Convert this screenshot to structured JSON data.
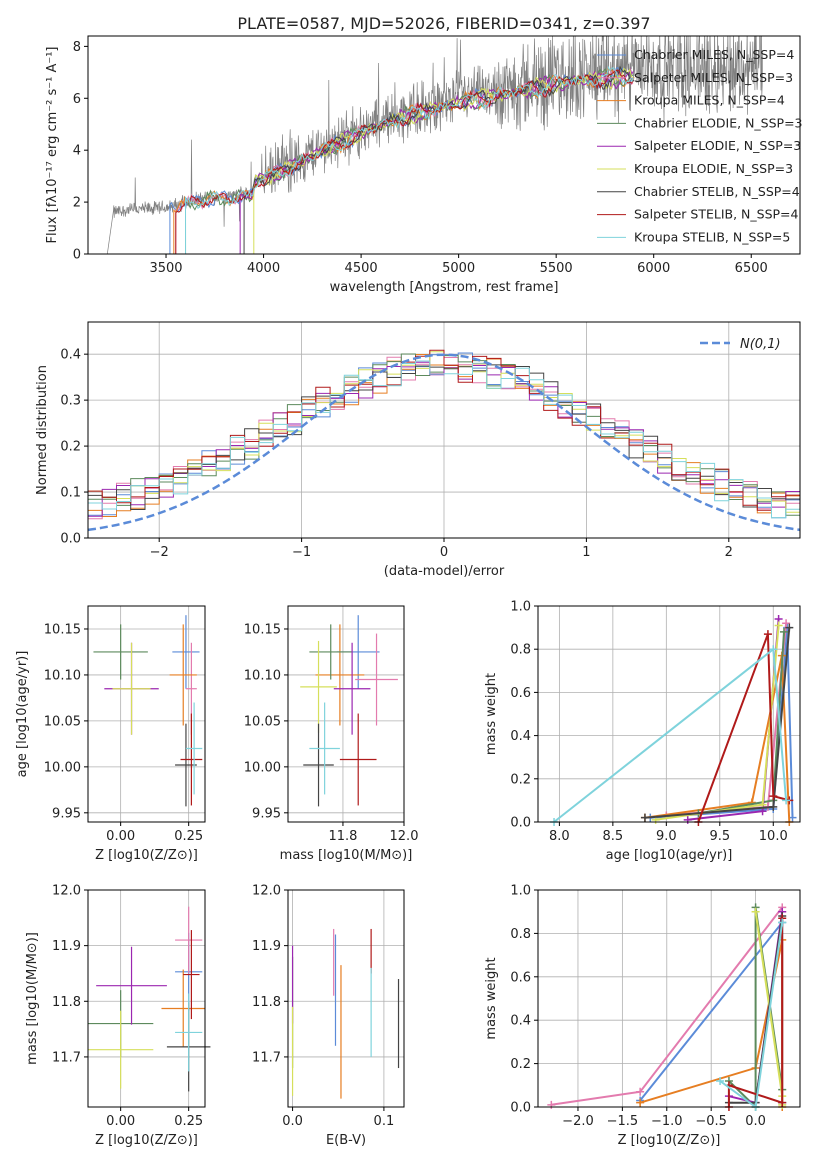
{
  "figure_title": "PLATE=0587, MJD=52026, FIBERID=0341, z=0.397",
  "colors": {
    "c1": "#5b8bd8",
    "c2": "#e37bae",
    "c3": "#e67e22",
    "c4": "#5c8a5c",
    "c5": "#9b27b0",
    "c6": "#d6df5b",
    "c7": "#444444",
    "c8": "#b01a1a",
    "c9": "#7fd3dc",
    "grid": "#b0b0b0",
    "spectrum": "#808080",
    "normal": "#5b8bd8"
  },
  "chart_data": [
    {
      "id": "spectrum",
      "type": "line",
      "title": "PLATE=0587, MJD=52026, FIBERID=0341, z=0.397",
      "xlabel": "wavelength [Angstrom, rest frame]",
      "ylabel": "Flux [fλ10⁻¹⁷ erg cm⁻² s⁻¹ A⁻¹]",
      "xlim": [
        3100,
        6750
      ],
      "ylim": [
        0,
        8.4
      ],
      "xticks": [
        3500,
        4000,
        4500,
        5000,
        5500,
        6000,
        6500
      ],
      "yticks": [
        0,
        2,
        4,
        6,
        8
      ],
      "grid": false,
      "legend": "top-right",
      "series": [
        {
          "name": "Chabrier MILES, N_SSP=4",
          "color": "c1"
        },
        {
          "name": "Salpeter MILES, N_SSP=3",
          "color": "c2"
        },
        {
          "name": "Kroupa MILES, N_SSP=4",
          "color": "c3"
        },
        {
          "name": "Chabrier ELODIE, N_SSP=3",
          "color": "c4"
        },
        {
          "name": "Salpeter ELODIE, N_SSP=3",
          "color": "c5"
        },
        {
          "name": "Kroupa ELODIE, N_SSP=3",
          "color": "c6"
        },
        {
          "name": "Chabrier STELIB, N_SSP=4",
          "color": "c7"
        },
        {
          "name": "Salpeter STELIB, N_SSP=4",
          "color": "c8"
        },
        {
          "name": "Kroupa STELIB, N_SSP=5",
          "color": "c9"
        }
      ],
      "continuum": {
        "x": [
          3200,
          3230,
          3300,
          3450,
          3520,
          3600,
          3700,
          3800,
          3900,
          3940,
          3960,
          4000,
          4100,
          4200,
          4300,
          4500,
          4700,
          4850,
          5000,
          5200,
          5400,
          5600,
          5800,
          6000,
          6200,
          6400,
          6560
        ],
        "y": [
          0,
          1.6,
          1.7,
          1.75,
          1.8,
          2.0,
          2.15,
          2.2,
          2.3,
          2.35,
          2.9,
          3.0,
          3.3,
          3.7,
          4.1,
          4.8,
          5.4,
          5.7,
          6.0,
          6.3,
          6.6,
          6.9,
          7.0,
          7.1,
          7.2,
          7.2,
          7.3
        ]
      },
      "model_starts": [
        3520,
        3550,
        3540,
        3600,
        3880,
        3950,
        3900,
        3550,
        3600
      ]
    },
    {
      "id": "residuals",
      "type": "area",
      "xlabel": "(data-model)/error",
      "ylabel": "Normed distribution",
      "xlim": [
        -2.5,
        2.5
      ],
      "ylim": [
        0,
        0.47
      ],
      "xticks": [
        -2,
        -1,
        0,
        1,
        2
      ],
      "yticks": [
        0,
        0.1,
        0.2,
        0.3,
        0.4
      ],
      "grid": true,
      "legend": "top-right",
      "normal_label": "N(0,1)",
      "bin_width": 0.1
    },
    {
      "id": "age-vs-Z",
      "type": "scatter",
      "xlabel": "Z [log10(Z/Z⊙)]",
      "ylabel": "age  [log10(age/yr)]",
      "xlim": [
        -0.12,
        0.31
      ],
      "ylim": [
        9.94,
        10.175
      ],
      "xticks": [
        0.0,
        0.25
      ],
      "yticks": [
        9.95,
        10.0,
        10.05,
        10.1,
        10.15
      ],
      "grid": true,
      "points": [
        {
          "color": "c1",
          "x": 0.24,
          "xerr": 0.05,
          "y": 10.125,
          "yerr": 0.04
        },
        {
          "color": "c2",
          "x": 0.26,
          "xerr": 0.02,
          "y": 10.085,
          "yerr": 0.05
        },
        {
          "color": "c3",
          "x": 0.23,
          "xerr": 0.05,
          "y": 10.1,
          "yerr": 0.055
        },
        {
          "color": "c4",
          "x": 0.0,
          "xerr": 0.1,
          "y": 10.125,
          "yerr": 0.03
        },
        {
          "color": "c5",
          "x": 0.04,
          "xerr": 0.1,
          "y": 10.085,
          "yerr": 0.05
        },
        {
          "color": "c6",
          "x": 0.04,
          "xerr": 0.07,
          "y": 10.085,
          "yerr": 0.05
        },
        {
          "color": "c7",
          "x": 0.24,
          "xerr": 0.04,
          "y": 10.002,
          "yerr": 0.045
        },
        {
          "color": "c8",
          "x": 0.26,
          "xerr": 0.04,
          "y": 10.008,
          "yerr": 0.05
        },
        {
          "color": "c9",
          "x": 0.27,
          "xerr": 0.03,
          "y": 10.02,
          "yerr": 0.05
        }
      ]
    },
    {
      "id": "age-vs-mass",
      "type": "scatter",
      "xlabel": "mass [log10(M/M⊙)]",
      "ylabel": "",
      "xlim": [
        11.62,
        12.0
      ],
      "ylim": [
        9.94,
        10.175
      ],
      "xticks": [
        11.8,
        12.0
      ],
      "yticks": [
        9.95,
        10.0,
        10.05,
        10.1,
        10.15
      ],
      "grid": true,
      "points": [
        {
          "color": "c1",
          "x": 11.85,
          "xerr": 0.07,
          "y": 10.125,
          "yerr": 0.04
        },
        {
          "color": "c2",
          "x": 11.91,
          "xerr": 0.07,
          "y": 10.095,
          "yerr": 0.05
        },
        {
          "color": "c3",
          "x": 11.79,
          "xerr": 0.08,
          "y": 10.1,
          "yerr": 0.055
        },
        {
          "color": "c4",
          "x": 11.76,
          "xerr": 0.07,
          "y": 10.125,
          "yerr": 0.03
        },
        {
          "color": "c5",
          "x": 11.83,
          "xerr": 0.06,
          "y": 10.085,
          "yerr": 0.05
        },
        {
          "color": "c6",
          "x": 11.72,
          "xerr": 0.06,
          "y": 10.087,
          "yerr": 0.05
        },
        {
          "color": "c7",
          "x": 11.72,
          "xerr": 0.05,
          "y": 10.002,
          "yerr": 0.045
        },
        {
          "color": "c8",
          "x": 11.85,
          "xerr": 0.06,
          "y": 10.008,
          "yerr": 0.05
        },
        {
          "color": "c9",
          "x": 11.74,
          "xerr": 0.05,
          "y": 10.02,
          "yerr": 0.05
        }
      ]
    },
    {
      "id": "mass-weight-vs-age",
      "type": "line",
      "xlabel": "age  [log10(age/yr)]",
      "ylabel": "mass weight",
      "xlim": [
        7.8,
        10.25
      ],
      "ylim": [
        0,
        1.0
      ],
      "xticks": [
        8.0,
        8.5,
        9.0,
        9.5,
        10.0
      ],
      "yticks": [
        0.0,
        0.2,
        0.4,
        0.6,
        0.8,
        1.0
      ],
      "grid": true,
      "series": [
        {
          "color": "c1",
          "x": [
            8.85,
            10.0,
            10.13,
            10.18
          ],
          "y": [
            0.02,
            0.06,
            0.9,
            0.02
          ]
        },
        {
          "color": "c2",
          "x": [
            9.0,
            9.95,
            10.12
          ],
          "y": [
            0.03,
            0.07,
            0.92
          ]
        },
        {
          "color": "c3",
          "x": [
            8.8,
            9.8,
            10.08,
            10.15
          ],
          "y": [
            0.02,
            0.09,
            0.77,
            0.0
          ]
        },
        {
          "color": "c4",
          "x": [
            9.3,
            10.0,
            10.1
          ],
          "y": [
            0.04,
            0.1,
            0.88
          ]
        },
        {
          "color": "c5",
          "x": [
            9.2,
            9.9,
            10.05
          ],
          "y": [
            0.01,
            0.05,
            0.94
          ]
        },
        {
          "color": "c6",
          "x": [
            8.9,
            9.9,
            10.05
          ],
          "y": [
            0.01,
            0.08,
            0.91
          ]
        },
        {
          "color": "c7",
          "x": [
            8.8,
            10.0,
            10.15
          ],
          "y": [
            0.02,
            0.07,
            0.9
          ]
        },
        {
          "color": "c8",
          "x": [
            9.3,
            9.95,
            10.0,
            10.15
          ],
          "y": [
            0.0,
            0.87,
            0.12,
            0.1
          ]
        },
        {
          "color": "c9",
          "x": [
            7.95,
            10.0,
            10.12
          ],
          "y": [
            0.0,
            0.8,
            0.1
          ]
        }
      ]
    },
    {
      "id": "mass-vs-Z",
      "type": "scatter",
      "xlabel": "Z [log10(Z/Z⊙)]",
      "ylabel": "mass [log10(M/M⊙)]",
      "xlim": [
        -0.12,
        0.31
      ],
      "ylim": [
        11.61,
        12.0
      ],
      "xticks": [
        0.0,
        0.25
      ],
      "yticks": [
        11.7,
        11.8,
        11.9,
        12.0
      ],
      "grid": true,
      "points": [
        {
          "color": "c1",
          "x": 0.25,
          "xerr": 0.05,
          "y": 11.853,
          "yerr": 0.07
        },
        {
          "color": "c2",
          "x": 0.25,
          "xerr": 0.05,
          "y": 11.91,
          "yerr": 0.06
        },
        {
          "color": "c3",
          "x": 0.23,
          "xerr": 0.08,
          "y": 11.787,
          "yerr": 0.07
        },
        {
          "color": "c4",
          "x": 0.0,
          "xerr": 0.12,
          "y": 11.76,
          "yerr": 0.06
        },
        {
          "color": "c5",
          "x": 0.04,
          "xerr": 0.13,
          "y": 11.828,
          "yerr": 0.07
        },
        {
          "color": "c6",
          "x": 0.0,
          "xerr": 0.12,
          "y": 11.713,
          "yerr": 0.07
        },
        {
          "color": "c7",
          "x": 0.25,
          "xerr": 0.08,
          "y": 11.718,
          "yerr": 0.08
        },
        {
          "color": "c8",
          "x": 0.26,
          "xerr": 0.03,
          "y": 11.848,
          "yerr": 0.08
        },
        {
          "color": "c9",
          "x": 0.25,
          "xerr": 0.05,
          "y": 11.744,
          "yerr": 0.07
        }
      ]
    },
    {
      "id": "mass-vs-EBV",
      "type": "scatter",
      "xlabel": "E(B-V)",
      "ylabel": "",
      "xlim": [
        -0.005,
        0.122
      ],
      "ylim": [
        11.61,
        12.0
      ],
      "xticks": [
        0.0,
        0.1
      ],
      "yticks": [
        11.7,
        11.8,
        11.9,
        12.0
      ],
      "grid": true,
      "points": [
        {
          "color": "c1",
          "x": 0.047,
          "xerr": 0,
          "y": 11.82,
          "yerr": 0.1
        },
        {
          "color": "c2",
          "x": 0.045,
          "xerr": 0,
          "y": 11.87,
          "yerr": 0.06
        },
        {
          "color": "c3",
          "x": 0.053,
          "xerr": 0,
          "y": 11.745,
          "yerr": 0.12
        },
        {
          "color": "c4",
          "x": 0.0,
          "xerr": 0,
          "y": 11.78,
          "yerr": 0.1
        },
        {
          "color": "c5",
          "x": 0.0,
          "xerr": 0,
          "y": 11.83,
          "yerr": 0.07
        },
        {
          "color": "c6",
          "x": 0.0,
          "xerr": 0,
          "y": 11.71,
          "yerr": 0.08
        },
        {
          "color": "c7",
          "x": 0.116,
          "xerr": 0,
          "y": 11.76,
          "yerr": 0.08
        },
        {
          "color": "c8",
          "x": 0.086,
          "xerr": 0,
          "y": 11.89,
          "yerr": 0.04
        },
        {
          "color": "c9",
          "x": 0.086,
          "xerr": 0,
          "y": 11.78,
          "yerr": 0.08
        }
      ]
    },
    {
      "id": "mass-weight-vs-Z",
      "type": "line",
      "xlabel": "Z [log10(Z/Z⊙)]",
      "ylabel": "mass weight",
      "xlim": [
        -2.45,
        0.5
      ],
      "ylim": [
        0,
        1.0
      ],
      "xticks": [
        -2.0,
        -1.5,
        -1.0,
        -0.5,
        0.0
      ],
      "yticks": [
        0.0,
        0.2,
        0.4,
        0.6,
        0.8,
        1.0
      ],
      "grid": true,
      "series": [
        {
          "color": "c1",
          "x": [
            -1.3,
            0.3,
            0.3
          ],
          "y": [
            0.03,
            0.85,
            0.02
          ]
        },
        {
          "color": "c2",
          "x": [
            -2.3,
            -1.3,
            0.3
          ],
          "y": [
            0.01,
            0.07,
            0.92
          ]
        },
        {
          "color": "c3",
          "x": [
            -1.3,
            0.0,
            0.3,
            0.3
          ],
          "y": [
            0.02,
            0.18,
            0.77,
            0.0
          ]
        },
        {
          "color": "c4",
          "x": [
            -0.3,
            0.0,
            0.0,
            0.3
          ],
          "y": [
            0.12,
            0.0,
            0.92,
            0.08
          ]
        },
        {
          "color": "c5",
          "x": [
            -0.3,
            0.0,
            0.3
          ],
          "y": [
            0.05,
            0.02,
            0.9
          ]
        },
        {
          "color": "c6",
          "x": [
            0.0,
            0.3,
            0.3
          ],
          "y": [
            0.9,
            0.05,
            0.01
          ]
        },
        {
          "color": "c7",
          "x": [
            -0.3,
            0.0,
            0.3
          ],
          "y": [
            0.02,
            0.02,
            0.88
          ]
        },
        {
          "color": "c8",
          "x": [
            -0.3,
            -0.3,
            0.3,
            0.3
          ],
          "y": [
            0.0,
            0.1,
            0.02,
            0.87
          ]
        },
        {
          "color": "c9",
          "x": [
            -0.4,
            0.0,
            0.3
          ],
          "y": [
            0.12,
            0.0,
            0.85
          ]
        }
      ]
    }
  ]
}
